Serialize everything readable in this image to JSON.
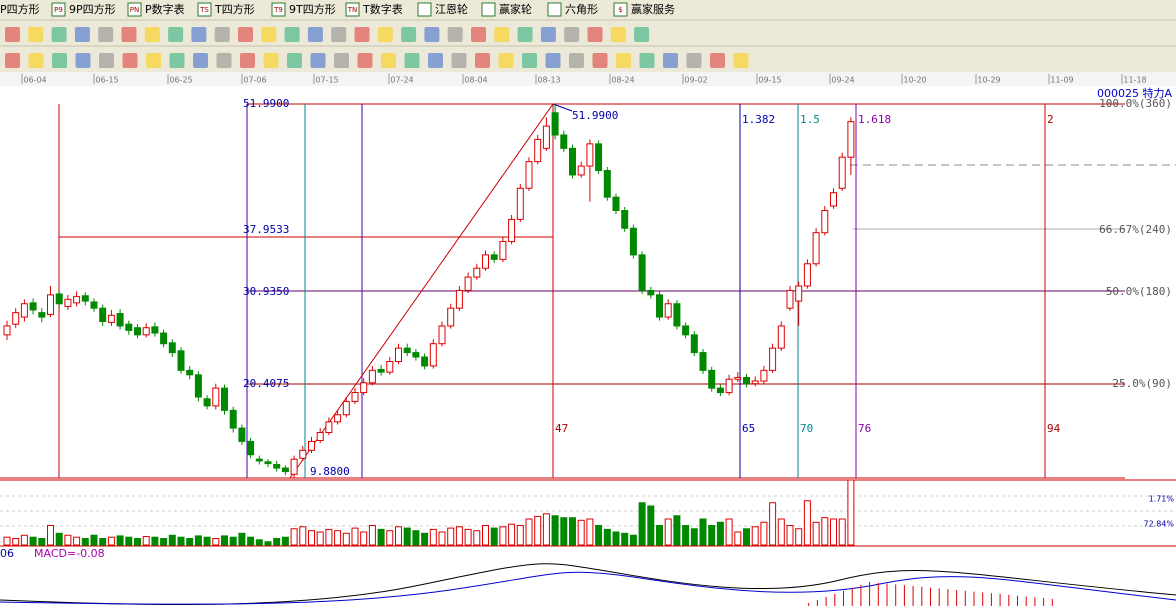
{
  "toolbar": {
    "items": [
      {
        "icon": "",
        "label": "P四方形"
      },
      {
        "icon": "P9",
        "label": "9P四方形"
      },
      {
        "icon": "PN",
        "label": "P数字表"
      },
      {
        "icon": "TS",
        "label": "T四方形"
      },
      {
        "icon": "T9",
        "label": "9T四方形"
      },
      {
        "icon": "TN",
        "label": "T数字表"
      },
      {
        "icon": "",
        "label": "江恩轮"
      },
      {
        "icon": "",
        "label": "赢家轮"
      },
      {
        "icon": "",
        "label": "六角形"
      },
      {
        "icon": "$",
        "label": "赢家服务"
      }
    ]
  },
  "date_axis": [
    "06-04",
    "06-15",
    "06-25",
    "07-06",
    "07-15",
    "07-24",
    "08-04",
    "08-13",
    "08-24",
    "09-02",
    "09-15",
    "09-24",
    "10-20",
    "10-29",
    "11-09",
    "11-18"
  ],
  "chart": {
    "header": "000025 特力A",
    "price_labels": [
      "51.9900",
      "37.9533",
      "30.9350",
      "20.4075"
    ],
    "peak_label": "51.9900",
    "low_label": "9.8800",
    "level_labels": [
      "100.0%(360)",
      "66.67%(240)",
      "50.0%(180)",
      "25.0%(90)"
    ],
    "fib_labels": [
      "1.382",
      "1.5",
      "1.618",
      "2"
    ],
    "day_labels": [
      "47",
      "65",
      "70",
      "76",
      "94"
    ],
    "candles": {
      "open": [
        26.0,
        27.2,
        28.0,
        29.6,
        28.5,
        28.3,
        30.6,
        29.2,
        29.6,
        30.4,
        29.7,
        29.0,
        27.4,
        28.4,
        27.2,
        26.8,
        26.0,
        26.9,
        26.2,
        25.1,
        24.2,
        22.0,
        21.5,
        18.8,
        18.0,
        20.0,
        17.5,
        15.5,
        14.0,
        12.0,
        11.7,
        11.4,
        11.0,
        10.3,
        12.1,
        13.0,
        14.1,
        15.0,
        16.2,
        17.0,
        18.5,
        19.5,
        20.6,
        22.1,
        21.8,
        23.0,
        24.5,
        24.0,
        23.5,
        22.5,
        25.0,
        27.0,
        29.0,
        31.0,
        32.5,
        33.5,
        35.0,
        34.5,
        36.5,
        39.0,
        42.5,
        45.5,
        47.0,
        51.0,
        48.5,
        47.0,
        44.0,
        45.0,
        47.5,
        44.5,
        41.5,
        40.0,
        38.0,
        35.0,
        31.0,
        30.5,
        28.0,
        29.5,
        27.0,
        26.0,
        24.0,
        22.0,
        20.0,
        19.5,
        21.0,
        21.2,
        20.5,
        20.8,
        22.0,
        24.5,
        29.0,
        29.8,
        31.5,
        34.0,
        37.5,
        40.5,
        42.5,
        46.0
      ],
      "high": [
        27.6,
        29.0,
        30.0,
        30.1,
        29.0,
        31.5,
        31.0,
        30.5,
        30.9,
        30.8,
        30.1,
        29.4,
        28.8,
        28.9,
        27.6,
        27.2,
        27.3,
        27.4,
        26.6,
        25.5,
        24.6,
        22.5,
        21.9,
        19.2,
        20.5,
        20.4,
        17.9,
        15.9,
        14.4,
        12.4,
        12.0,
        11.8,
        11.3,
        12.4,
        13.5,
        14.5,
        15.5,
        16.7,
        17.5,
        19.0,
        20.0,
        21.1,
        22.5,
        22.6,
        23.5,
        25.0,
        25.0,
        24.4,
        23.9,
        25.5,
        27.5,
        29.5,
        31.5,
        33.0,
        34.0,
        35.5,
        35.4,
        37.0,
        39.5,
        43.0,
        46.0,
        48.5,
        50.5,
        51.99,
        49.0,
        47.4,
        45.5,
        48.0,
        47.9,
        44.9,
        41.9,
        40.4,
        38.4,
        35.4,
        31.4,
        30.9,
        30.0,
        29.9,
        27.4,
        26.4,
        24.4,
        22.4,
        20.4,
        21.5,
        21.8,
        21.6,
        21.3,
        22.5,
        25.0,
        27.5,
        31.5,
        32.0,
        34.5,
        38.0,
        40.5,
        42.5,
        46.5,
        50.5
      ],
      "low": [
        25.4,
        26.8,
        27.5,
        28.3,
        27.4,
        28.0,
        29.0,
        28.8,
        29.2,
        29.3,
        28.6,
        27.0,
        27.0,
        26.6,
        26.0,
        25.6,
        25.7,
        25.8,
        24.6,
        23.5,
        21.6,
        21.0,
        18.5,
        17.6,
        17.6,
        17.0,
        15.0,
        13.6,
        12.1,
        11.4,
        11.1,
        10.6,
        10.2,
        9.88,
        11.8,
        12.7,
        13.8,
        14.7,
        15.9,
        16.7,
        18.2,
        19.2,
        20.3,
        21.4,
        21.5,
        22.7,
        23.6,
        23.1,
        22.1,
        22.2,
        24.7,
        26.7,
        28.7,
        30.7,
        32.2,
        33.2,
        34.1,
        34.2,
        36.2,
        38.7,
        42.2,
        45.2,
        46.7,
        48.0,
        46.6,
        43.6,
        43.7,
        41.0,
        44.1,
        41.1,
        39.6,
        37.6,
        34.6,
        30.6,
        30.1,
        27.6,
        27.7,
        26.6,
        25.6,
        23.6,
        21.6,
        19.6,
        19.1,
        19.2,
        20.7,
        20.1,
        20.2,
        20.5,
        21.7,
        24.2,
        28.7,
        27.0,
        31.2,
        33.7,
        37.2,
        40.2,
        42.2,
        44.0
      ],
      "close": [
        27.0,
        28.5,
        29.5,
        28.8,
        28.0,
        30.5,
        29.5,
        30.0,
        30.3,
        29.8,
        29.0,
        27.5,
        28.2,
        27.0,
        26.5,
        26.0,
        26.8,
        26.2,
        25.0,
        24.0,
        22.0,
        21.5,
        19.0,
        18.0,
        20.0,
        17.5,
        15.5,
        14.0,
        12.5,
        11.8,
        11.5,
        11.0,
        10.6,
        12.0,
        13.0,
        14.0,
        15.0,
        16.2,
        17.0,
        18.5,
        19.5,
        20.6,
        22.0,
        21.8,
        23.0,
        24.5,
        24.0,
        23.5,
        22.5,
        25.0,
        27.0,
        29.0,
        31.0,
        32.5,
        33.5,
        35.0,
        34.5,
        36.5,
        39.0,
        42.5,
        45.5,
        48.0,
        49.5,
        48.5,
        47.0,
        44.0,
        45.0,
        47.5,
        44.5,
        41.5,
        40.0,
        38.0,
        35.0,
        31.0,
        30.5,
        28.0,
        29.5,
        27.0,
        26.0,
        24.0,
        22.0,
        20.0,
        19.5,
        21.0,
        21.2,
        20.5,
        20.8,
        22.0,
        24.5,
        27.0,
        31.0,
        31.5,
        34.0,
        37.5,
        40.0,
        42.0,
        46.0,
        50.0
      ]
    },
    "volume": [
      12,
      10,
      15,
      12,
      10,
      30,
      18,
      15,
      12,
      10,
      15,
      10,
      12,
      14,
      12,
      10,
      13,
      12,
      10,
      15,
      12,
      10,
      14,
      12,
      10,
      14,
      12,
      18,
      12,
      8,
      5,
      10,
      12,
      25,
      28,
      22,
      20,
      24,
      22,
      18,
      26,
      20,
      30,
      24,
      22,
      28,
      26,
      22,
      18,
      24,
      20,
      26,
      28,
      24,
      22,
      30,
      26,
      28,
      32,
      30,
      40,
      44,
      48,
      45,
      42,
      42,
      38,
      40,
      30,
      24,
      20,
      18,
      15,
      65,
      60,
      30,
      40,
      45,
      30,
      25,
      40,
      30,
      35,
      40,
      20,
      25,
      28,
      35,
      65,
      40,
      30,
      25,
      68,
      35,
      42,
      40,
      40,
      100
    ],
    "volume_labels": [
      "1.71%",
      "72.84%"
    ],
    "macd_left": "06",
    "macd_label": "MACD=-0.08"
  }
}
